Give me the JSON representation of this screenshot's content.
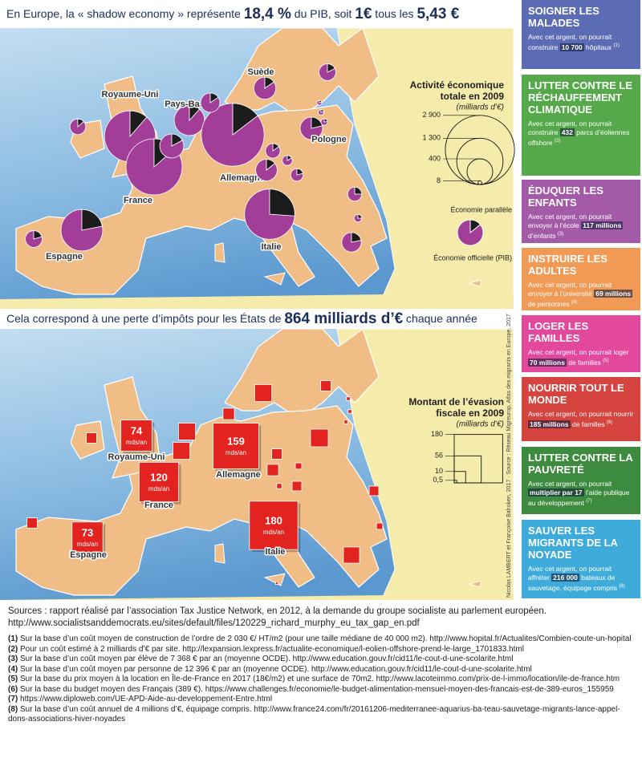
{
  "chart_data": [
    {
      "type": "pie",
      "title": [
        "En Europe, la « shadow economy » représente ",
        "18,4 %",
        " du PIB, soit ",
        "1€",
        " tous les ",
        "5,43 €"
      ],
      "legend_title": [
        "Activité économique",
        "totale en  2009"
      ],
      "legend_unit": "(milliards d’€)",
      "size_legend": [
        {
          "value": 2900,
          "label": "2 900"
        },
        {
          "value": 1300,
          "label": "1 300"
        },
        400,
        8
      ],
      "categories": [
        "Royaume-Uni",
        "Pays-Bas",
        "Suède",
        "Allemagne",
        "Pologne",
        "France",
        "Espagne",
        "Italie",
        null,
        null,
        null,
        null,
        null,
        null,
        null,
        null,
        null,
        null,
        null,
        null,
        null,
        null,
        null
      ],
      "series": [
        {
          "name": "Économie parallèle",
          "color": "#1c1c1c",
          "values": [
            180,
            65,
            45,
            350,
            65,
            260,
            230,
            400,
            20,
            60,
            35,
            30,
            40,
            20,
            20,
            35,
            50,
            30,
            3,
            4,
            6,
            9,
            10
          ]
        },
        {
          "name": "Économie officielle (PIB)",
          "color": "#a23d98",
          "values": [
            1400,
            490,
            250,
            2050,
            240,
            1650,
            820,
            1130,
            130,
            290,
            190,
            140,
            240,
            110,
            75,
            135,
            180,
            90,
            11,
            14,
            20,
            27,
            50
          ]
        }
      ]
    },
    {
      "type": "square",
      "title": [
        "Cela correspond à une perte d’impôts pour les États de ",
        "864 milliards d’€",
        " chaque année"
      ],
      "legend_title": [
        "Montant de l’évasion",
        "fiscale en  2009"
      ],
      "legend_unit": "(milliards d’€)",
      "size_legend": [
        180,
        56,
        10,
        {
          "value": 0.5,
          "label": "0,5"
        }
      ],
      "unit": "mds/an",
      "color": "#e3231f",
      "categories": [
        "Royaume-Uni",
        "Allemagne",
        "France",
        "Italie",
        "Espagne",
        null,
        null,
        null,
        null,
        null,
        null,
        null,
        null,
        null,
        null,
        null,
        null,
        null,
        null,
        null,
        null,
        null,
        null,
        null,
        null
      ],
      "values": [
        74,
        159,
        120,
        180,
        73,
        8,
        22,
        22,
        10,
        22,
        8,
        1,
        1,
        1,
        24,
        8,
        10,
        3,
        7,
        2,
        7,
        3,
        20,
        8,
        0.5
      ]
    }
  ],
  "credit": "Nicolas LAMBERT  et Françoise Bahoken, 2017 · Source : Réseau Migreurop, Atlas des migrants en Europe, 2017",
  "panels": [
    {
      "title": "SOIGNER LES MALADES",
      "text": "Avec cet argent, on pourrait construire ",
      "highlight": "10 700",
      "text_after": " hôpitaux ",
      "note": "(1)"
    },
    {
      "title": "LUTTER CONTRE LE RÉCHAUFFEMENT CLIMATIQUE",
      "text": "Avec cet argent, on pourrait construire ",
      "highlight": "432",
      "text_after": " parcs d’éoliennes offshore ",
      "note": "(2)"
    },
    {
      "title": "ÉDUQUER LES ENFANTS",
      "text": "Avec cet argent, on pourrait envoyer à l’école ",
      "highlight": "117 millions",
      "text_after": " d’enfants ",
      "note": "(3)"
    },
    {
      "title": "INSTRUIRE LES ADULTES",
      "text": "Avec cet argent,  on pourrait envoyer à l’université ",
      "highlight": "69 millions",
      "text_after": " de personnes ",
      "note": "(4)"
    },
    {
      "title": "LOGER LES FAMILLES",
      "text": "Avec cet argent, on pourrait loger ",
      "highlight": "70 millions",
      "text_after": " de familles ",
      "note": "(5)"
    },
    {
      "title": "NOURRIR TOUT LE MONDE",
      "text": "Avec cet argent, on pourrait nourrir ",
      "highlight": "185 millions",
      "text_after": " de familles ",
      "note": "(6)"
    },
    {
      "title": "LUTTER CONTRE LA PAUVRETÉ",
      "text": "Avec cet argent, on pourrait ",
      "highlight": "multiplier par 17",
      "text_after": " l’aide publique au développement ",
      "note": "(7)"
    },
    {
      "title": "SAUVER LES MIGRANTS DE LA NOYADE",
      "text": "Avec cet argent, on pourrait affréter ",
      "highlight": "216 000",
      "text_after": " bateaux de sauvetage, équipage compris ",
      "note": "(8)"
    }
  ],
  "sources": {
    "intro": "Sources : rapport réalisé par l’association Tax Justice Network, en 2012, à la demande du groupe socialiste au parlement européen.",
    "url": "http://www.socialistsanddemocrats.eu/sites/default/files/120229_richard_murphy_eu_tax_gap_en.pdf",
    "notes": [
      {
        "num": "(1)",
        "text": " Sur la base d’un coût moyen de construction de l’ordre de 2 030 €/ HT/m2 (pour une taille médiane de 40 000 m2). http://www.hopital.fr/Actualites/Combien-coute-un-hopital"
      },
      {
        "num": "(2)",
        "text": " Pour un coût estimé à 2 milliards d’€ par site. http://lexpansion.lexpress.fr/actualite-economique/l-eolien-offshore-prend-le-large_1701833.html"
      },
      {
        "num": "(3)",
        "text": " Sur la base d’un coût moyen par élève de 7 368 € par an (moyenne OCDE). http://www.education.gouv.fr/cid11/le-cout-d-une-scolarite.html"
      },
      {
        "num": "(4)",
        "text": " Sur la base d’un coût moyen par personne de 12 396 € par an (moyenne OCDE). http://www.education.gouv.fr/cid11/le-cout-d-une-scolarite.html"
      },
      {
        "num": "(5)",
        "text": " Sur la base du prix moyen à la location en Île-de-France en 2017 (18€/m2) et une surface de 70m2.  http://www.lacoteimmo.com/prix-de-l-immo/location/ile-de-france.htm"
      },
      {
        "num": "(6)",
        "text": " Sur la base du budget  moyen des Français (389 €). https://www.challenges.fr/economie/le-budget-alimentation-mensuel-moyen-des-francais-est-de-389-euros_155959"
      },
      {
        "num": "(7)",
        "text": " https://www.diploweb.com/UE-APD-Aide-au-developpement-Entre.html"
      },
      {
        "num": "(8)",
        "text": " Sur la base d’un coût annuel de 4 millions  d’€, équipage compris. http://www.france24.com/fr/20161206-mediterranee-aquarius-ba-teau-sauvetage-migrants-lance-appel-dons-associations-hiver-noyades"
      }
    ]
  }
}
